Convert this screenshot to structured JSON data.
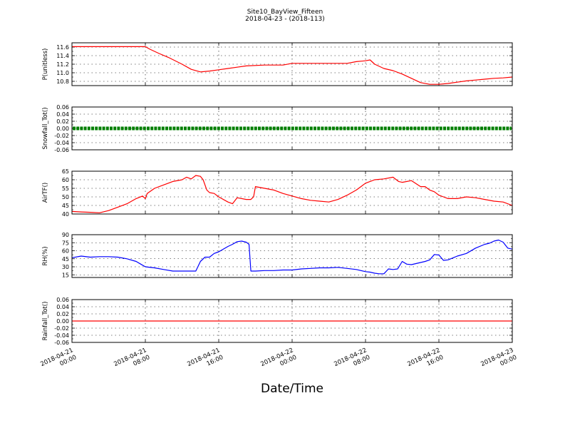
{
  "title": "Site10_BayView_Fifteen",
  "subtitle": "2018-04-23 - (2018-113)",
  "xlabel": "Date/Time",
  "x_ticks": [
    {
      "line1": "2018-04-21",
      "line2": "00:00"
    },
    {
      "line1": "2018-04-21",
      "line2": "08:00"
    },
    {
      "line1": "2018-04-21",
      "line2": "16:00"
    },
    {
      "line1": "2018-04-22",
      "line2": "00:00"
    },
    {
      "line1": "2018-04-22",
      "line2": "08:00"
    },
    {
      "line1": "2018-04-22",
      "line2": "16:00"
    },
    {
      "line1": "2018-04-23",
      "line2": "00:00"
    }
  ],
  "chart_data": [
    {
      "type": "line",
      "ylabel": "P(unitless)",
      "xlim": [
        "2018-04-21 00:00",
        "2018-04-23 00:00"
      ],
      "ylim": [
        10.7,
        11.7
      ],
      "yticks": [
        "11.6",
        "11.4",
        "11.2",
        "11.0",
        "10.8"
      ],
      "grid": true,
      "color": "#ff0000",
      "x_hours": [
        0,
        8,
        8.5,
        9.5,
        10.5,
        12,
        13,
        14,
        15,
        16,
        17,
        18,
        19,
        21,
        23,
        24,
        26,
        28,
        30,
        31,
        32,
        32.5,
        33,
        34,
        35,
        36,
        37,
        38,
        39,
        40,
        41,
        42,
        43,
        44,
        45,
        46,
        47,
        48
      ],
      "y": [
        11.61,
        11.61,
        11.55,
        11.45,
        11.36,
        11.2,
        11.08,
        11.02,
        11.04,
        11.07,
        11.1,
        11.13,
        11.16,
        11.18,
        11.18,
        11.22,
        11.22,
        11.22,
        11.22,
        11.26,
        11.28,
        11.3,
        11.2,
        11.1,
        11.05,
        10.97,
        10.87,
        10.77,
        10.73,
        10.73,
        10.75,
        10.78,
        10.81,
        10.83,
        10.85,
        10.87,
        10.88,
        10.9
      ]
    },
    {
      "type": "scatter",
      "ylabel": "Snowfall_Tot()",
      "xlim": [
        "2018-04-21 00:00",
        "2018-04-23 00:00"
      ],
      "ylim": [
        -0.06,
        0.06
      ],
      "yticks": [
        "0.06",
        "0.04",
        "0.02",
        "0.00",
        "-0.02",
        "-0.04",
        "-0.06"
      ],
      "grid": true,
      "color": "#007f00",
      "x_hours": [
        0,
        48
      ],
      "y": [
        0.0,
        0.0
      ]
    },
    {
      "type": "line",
      "ylabel": "AirTF()",
      "xlim": [
        "2018-04-21 00:00",
        "2018-04-23 00:00"
      ],
      "ylim": [
        40,
        65
      ],
      "yticks": [
        "65",
        "60",
        "55",
        "50",
        "45",
        "40"
      ],
      "grid": true,
      "color": "#ff0000",
      "x_hours": [
        0,
        1,
        2,
        3,
        4,
        5,
        6,
        7,
        7.7,
        8,
        8.2,
        9,
        10,
        11,
        12,
        12.5,
        13,
        13.5,
        14,
        14.3,
        14.7,
        15,
        15.5,
        16,
        17,
        17.5,
        18,
        19,
        19.5,
        19.8,
        20,
        21,
        22,
        23,
        24,
        25,
        26,
        27,
        28,
        29,
        30,
        31,
        31.5,
        32,
        33,
        34,
        35,
        35.6,
        36,
        37,
        38,
        38.5,
        39,
        39.5,
        40,
        40.5,
        41,
        42,
        43,
        44,
        45,
        46,
        47,
        48
      ],
      "y": [
        41.5,
        41.2,
        41.0,
        40.7,
        42.0,
        44.0,
        46.0,
        49.0,
        50.5,
        49.0,
        52.0,
        55.0,
        57.0,
        59.0,
        60.0,
        61.5,
        60.5,
        62.5,
        62.0,
        60.0,
        54.0,
        52.5,
        52.0,
        50.0,
        47.0,
        46.0,
        49.5,
        48.5,
        48.5,
        50.0,
        56.0,
        55.0,
        54.0,
        52.0,
        50.5,
        49.0,
        48.0,
        47.5,
        47.0,
        48.5,
        51.0,
        54.0,
        56.0,
        58.0,
        60.0,
        60.5,
        61.5,
        59.0,
        58.5,
        59.5,
        56.0,
        56.0,
        54.0,
        53.0,
        51.0,
        50.0,
        49.0,
        49.0,
        50.0,
        49.5,
        48.5,
        47.5,
        47.0,
        45.0
      ]
    },
    {
      "type": "line",
      "ylabel": "RH(%)",
      "xlim": [
        "2018-04-21 00:00",
        "2018-04-23 00:00"
      ],
      "ylim": [
        10,
        90
      ],
      "yticks": [
        "90",
        "75",
        "60",
        "45",
        "30",
        "15"
      ],
      "grid": true,
      "color": "#0000ff",
      "x_hours": [
        0,
        1,
        2,
        3,
        4,
        5,
        6,
        7,
        7.5,
        8,
        9,
        10,
        11,
        12,
        13,
        13.5,
        14,
        14.5,
        15,
        15.5,
        16,
        17,
        17.5,
        18,
        18.5,
        19,
        19.3,
        19.5,
        20,
        21,
        22,
        23,
        24,
        25,
        26,
        27,
        28,
        29,
        30,
        31,
        32,
        32.5,
        33,
        33.5,
        34,
        34.5,
        35,
        35.5,
        36,
        36.5,
        37,
        37.5,
        38,
        38.5,
        39,
        39.5,
        40,
        40.5,
        41,
        42,
        43,
        44,
        45,
        45.5,
        46,
        46.5,
        47,
        47.5,
        48
      ],
      "y": [
        47,
        50,
        48,
        49,
        49,
        48,
        45,
        40,
        35,
        30,
        28,
        25,
        22,
        22,
        22,
        22,
        40,
        48,
        48,
        55,
        58,
        68,
        72,
        77,
        78,
        76,
        72,
        22,
        22,
        23,
        23,
        24,
        24,
        26,
        27,
        28,
        28,
        29,
        27,
        25,
        21,
        20,
        18,
        17,
        17,
        26,
        25,
        26,
        40,
        35,
        34,
        36,
        38,
        40,
        43,
        53,
        52,
        42,
        43,
        50,
        55,
        65,
        72,
        74,
        78,
        80,
        76,
        65,
        63
      ]
    },
    {
      "type": "line",
      "ylabel": "Rainfall_Tot()",
      "xlim": [
        "2018-04-21 00:00",
        "2018-04-23 00:00"
      ],
      "ylim": [
        -0.06,
        0.06
      ],
      "yticks": [
        "0.06",
        "0.04",
        "0.02",
        "0.00",
        "-0.02",
        "-0.04",
        "-0.06"
      ],
      "grid": true,
      "color": "#ff0000",
      "x_hours": [
        0,
        48
      ],
      "y": [
        0.0,
        0.0
      ]
    }
  ]
}
